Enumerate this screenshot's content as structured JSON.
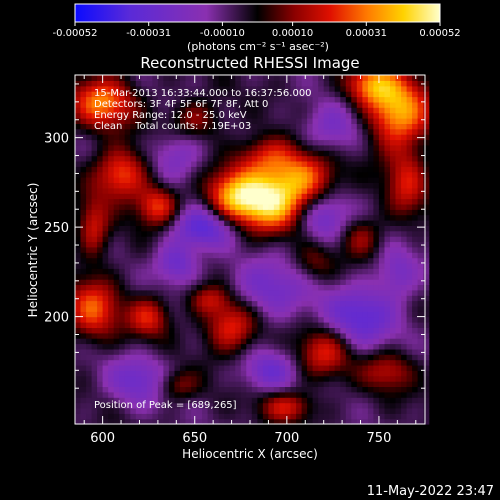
{
  "chart_data": {
    "type": "heatmap",
    "title": "Reconstructed RHESSI Image",
    "xlabel": "Heliocentric X (arcsec)",
    "ylabel": "Heliocentric Y (arcsec)",
    "xlim": [
      585,
      775
    ],
    "ylim": [
      140,
      335
    ],
    "x_ticks": [
      600,
      650,
      700,
      750
    ],
    "y_ticks": [
      200,
      250,
      300
    ],
    "colorbar": {
      "unit_label": "(photons cm⁻² s⁻¹ asec⁻²)",
      "range": [
        -0.00052,
        0.00052
      ],
      "tick_values": [
        -0.00052,
        -0.00031,
        -0.0001,
        0.0001,
        0.00031,
        0.00052
      ],
      "tick_labels": [
        "-0.00052",
        "-0.00031",
        "-0.00010",
        "0.00010",
        "0.00031",
        "0.00052"
      ],
      "colors": [
        "#0b0bff",
        "#5a2ad8",
        "#8a30b0",
        "#000000",
        "#8a0000",
        "#e01000",
        "#ff7a00",
        "#ffd200",
        "#ffffcc"
      ]
    },
    "annotations": [
      "15-Mar-2013 16:33:44.000 to 16:37:56.000",
      "Detectors: 3F 4F 5F 6F 7F 8F, Att 0",
      "Energy Range: 12.0 - 25.0 keV",
      "Clean    Total counts: 7.19E+03"
    ],
    "peak_label": "Position of Peak = [689,265]",
    "peak": {
      "x": 689,
      "y": 265,
      "value": 0.00052
    },
    "sources": [
      {
        "x": 689,
        "y": 265,
        "sx": 14,
        "sy": 12,
        "a": 1.0
      },
      {
        "x": 710,
        "y": 278,
        "sx": 12,
        "sy": 10,
        "a": 0.6
      },
      {
        "x": 670,
        "y": 268,
        "sx": 10,
        "sy": 10,
        "a": 0.55
      },
      {
        "x": 690,
        "y": 290,
        "sx": 12,
        "sy": 8,
        "a": 0.45
      },
      {
        "x": 760,
        "y": 315,
        "sx": 12,
        "sy": 14,
        "a": 0.85
      },
      {
        "x": 745,
        "y": 330,
        "sx": 10,
        "sy": 8,
        "a": 0.6
      },
      {
        "x": 765,
        "y": 275,
        "sx": 8,
        "sy": 14,
        "a": 0.45
      },
      {
        "x": 600,
        "y": 320,
        "sx": 12,
        "sy": 10,
        "a": 0.7
      },
      {
        "x": 610,
        "y": 280,
        "sx": 10,
        "sy": 10,
        "a": 0.65
      },
      {
        "x": 630,
        "y": 262,
        "sx": 8,
        "sy": 8,
        "a": 0.6
      },
      {
        "x": 595,
        "y": 250,
        "sx": 6,
        "sy": 12,
        "a": 0.45
      },
      {
        "x": 595,
        "y": 205,
        "sx": 10,
        "sy": 12,
        "a": 0.6
      },
      {
        "x": 625,
        "y": 200,
        "sx": 8,
        "sy": 8,
        "a": 0.5
      },
      {
        "x": 670,
        "y": 195,
        "sx": 10,
        "sy": 10,
        "a": 0.6
      },
      {
        "x": 658,
        "y": 210,
        "sx": 8,
        "sy": 6,
        "a": 0.4
      },
      {
        "x": 720,
        "y": 180,
        "sx": 10,
        "sy": 10,
        "a": 0.5
      },
      {
        "x": 755,
        "y": 170,
        "sx": 10,
        "sy": 8,
        "a": 0.4
      },
      {
        "x": 700,
        "y": 150,
        "sx": 10,
        "sy": 6,
        "a": 0.45
      },
      {
        "x": 640,
        "y": 162,
        "sx": 8,
        "sy": 6,
        "a": 0.35
      },
      {
        "x": 740,
        "y": 245,
        "sx": 8,
        "sy": 8,
        "a": 0.35
      },
      {
        "x": 715,
        "y": 230,
        "sx": 8,
        "sy": 8,
        "a": 0.3
      },
      {
        "x": 650,
        "y": 310,
        "sx": 10,
        "sy": 8,
        "a": 0.35
      },
      {
        "x": 655,
        "y": 250,
        "sx": 12,
        "sy": 8,
        "a": -0.55
      },
      {
        "x": 640,
        "y": 230,
        "sx": 8,
        "sy": 8,
        "a": -0.45
      },
      {
        "x": 720,
        "y": 255,
        "sx": 10,
        "sy": 10,
        "a": -0.45
      },
      {
        "x": 690,
        "y": 215,
        "sx": 16,
        "sy": 12,
        "a": -0.4
      },
      {
        "x": 740,
        "y": 200,
        "sx": 14,
        "sy": 12,
        "a": -0.5
      },
      {
        "x": 620,
        "y": 165,
        "sx": 12,
        "sy": 10,
        "a": -0.4
      },
      {
        "x": 690,
        "y": 170,
        "sx": 10,
        "sy": 8,
        "a": -0.4
      },
      {
        "x": 640,
        "y": 290,
        "sx": 10,
        "sy": 10,
        "a": -0.35
      },
      {
        "x": 725,
        "y": 305,
        "sx": 12,
        "sy": 10,
        "a": -0.35
      },
      {
        "x": 760,
        "y": 225,
        "sx": 8,
        "sy": 10,
        "a": -0.35
      }
    ]
  },
  "footer": {
    "timestamp": "11-May-2022 23:47"
  }
}
